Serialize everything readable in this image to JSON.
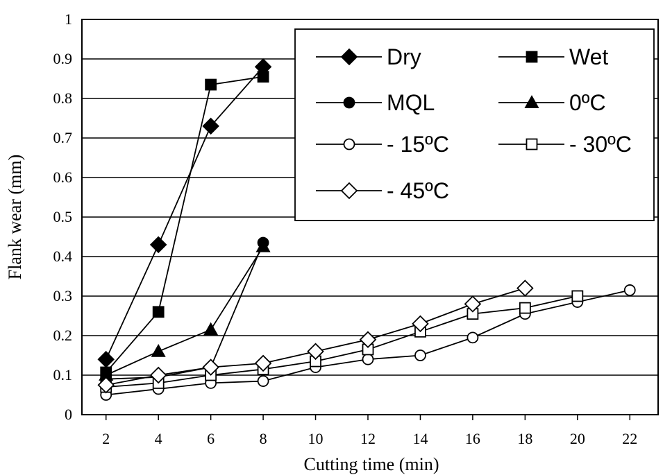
{
  "chart_data": {
    "type": "line",
    "xlabel": "Cutting time (min)",
    "ylabel": "Flank wear (mm)",
    "xlim": [
      1,
      23
    ],
    "ylim": [
      0,
      1
    ],
    "xticks": [
      2,
      4,
      6,
      8,
      10,
      12,
      14,
      16,
      18,
      20,
      22
    ],
    "yticks": [
      0,
      0.1,
      0.2,
      0.3,
      0.4,
      0.5,
      0.6,
      0.7,
      0.8,
      0.9,
      1
    ],
    "grid": true,
    "legend": "upper right",
    "series": [
      {
        "name": "Dry",
        "marker": "diamond",
        "filled": true,
        "color": "#000000",
        "x": [
          2,
          4,
          6,
          8
        ],
        "values": [
          0.14,
          0.43,
          0.73,
          0.88
        ]
      },
      {
        "name": "Wet",
        "marker": "square",
        "filled": true,
        "color": "#000000",
        "x": [
          2,
          4,
          6,
          8
        ],
        "values": [
          0.107,
          0.26,
          0.835,
          0.855
        ]
      },
      {
        "name": "MQL",
        "marker": "circle",
        "filled": true,
        "color": "#000000",
        "x": [
          2,
          4,
          6,
          8
        ],
        "values": [
          0.09,
          0.095,
          0.12,
          0.435
        ]
      },
      {
        "name": "0ºC",
        "marker": "triangle",
        "filled": true,
        "color": "#000000",
        "x": [
          2,
          4,
          6,
          8
        ],
        "values": [
          0.1,
          0.16,
          0.215,
          0.425
        ]
      },
      {
        "name": "- 15ºC",
        "marker": "circle",
        "filled": false,
        "color": "#000000",
        "x": [
          2,
          4,
          6,
          8,
          10,
          12,
          14,
          16,
          18,
          20,
          22
        ],
        "values": [
          0.05,
          0.065,
          0.08,
          0.085,
          0.12,
          0.14,
          0.15,
          0.195,
          0.255,
          0.285,
          0.315
        ]
      },
      {
        "name": "- 30ºC",
        "marker": "square",
        "filled": false,
        "color": "#000000",
        "x": [
          2,
          4,
          6,
          8,
          10,
          12,
          14,
          16,
          18,
          20
        ],
        "values": [
          0.07,
          0.08,
          0.1,
          0.115,
          0.135,
          0.165,
          0.21,
          0.255,
          0.27,
          0.3
        ]
      },
      {
        "name": "- 45ºC",
        "marker": "diamond",
        "filled": false,
        "color": "#000000",
        "x": [
          2,
          4,
          6,
          8,
          10,
          12,
          14,
          16,
          18
        ],
        "values": [
          0.075,
          0.1,
          0.12,
          0.13,
          0.16,
          0.19,
          0.23,
          0.28,
          0.32
        ]
      }
    ]
  }
}
